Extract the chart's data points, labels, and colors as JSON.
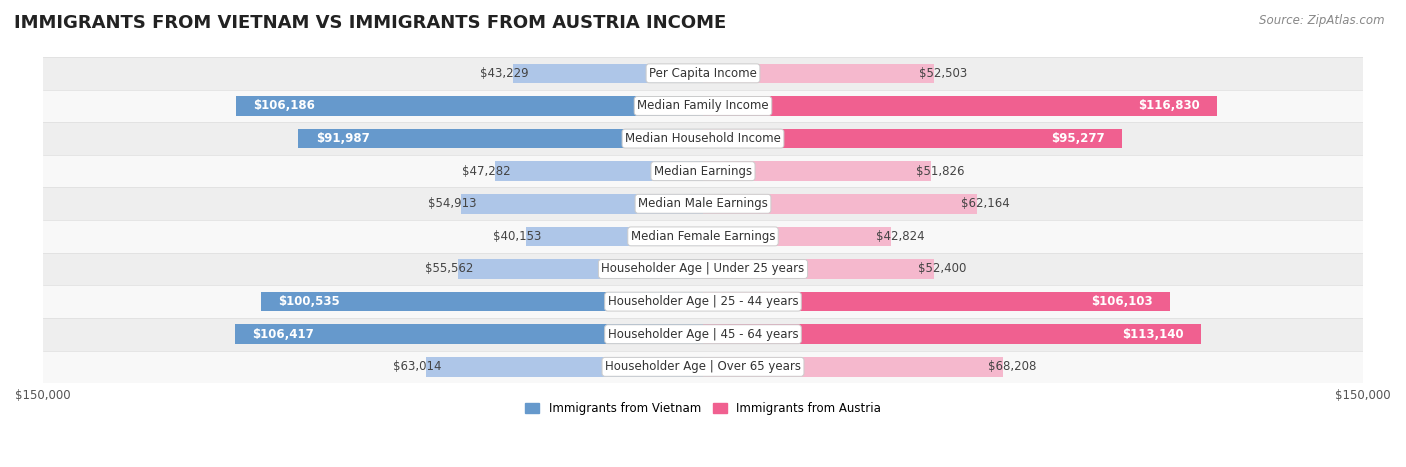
{
  "title": "IMMIGRANTS FROM VIETNAM VS IMMIGRANTS FROM AUSTRIA INCOME",
  "source": "Source: ZipAtlas.com",
  "categories": [
    "Per Capita Income",
    "Median Family Income",
    "Median Household Income",
    "Median Earnings",
    "Median Male Earnings",
    "Median Female Earnings",
    "Householder Age | Under 25 years",
    "Householder Age | 25 - 44 years",
    "Householder Age | 45 - 64 years",
    "Householder Age | Over 65 years"
  ],
  "vietnam_values": [
    43229,
    106186,
    91987,
    47282,
    54913,
    40153,
    55562,
    100535,
    106417,
    63014
  ],
  "austria_values": [
    52503,
    116830,
    95277,
    51826,
    62164,
    42824,
    52400,
    106103,
    113140,
    68208
  ],
  "vietnam_labels": [
    "$43,229",
    "$106,186",
    "$91,987",
    "$47,282",
    "$54,913",
    "$40,153",
    "$55,562",
    "$100,535",
    "$106,417",
    "$63,014"
  ],
  "austria_labels": [
    "$52,503",
    "$116,830",
    "$95,277",
    "$51,826",
    "$62,164",
    "$42,824",
    "$52,400",
    "$106,103",
    "$113,140",
    "$68,208"
  ],
  "max_val": 150000,
  "vietnam_color_light": "#aec6e8",
  "vietnam_color_dark": "#6699cc",
  "austria_color_light": "#f5b8cd",
  "austria_color_dark": "#f06090",
  "legend_vietnam": "Immigrants from Vietnam",
  "legend_austria": "Immigrants from Austria",
  "row_bg_odd": "#eeeeee",
  "row_bg_even": "#f8f8f8",
  "bar_height": 0.6,
  "title_fontsize": 13,
  "label_fontsize": 8.5,
  "category_fontsize": 8.5,
  "axis_fontsize": 8.5,
  "inside_label_threshold": 70000
}
